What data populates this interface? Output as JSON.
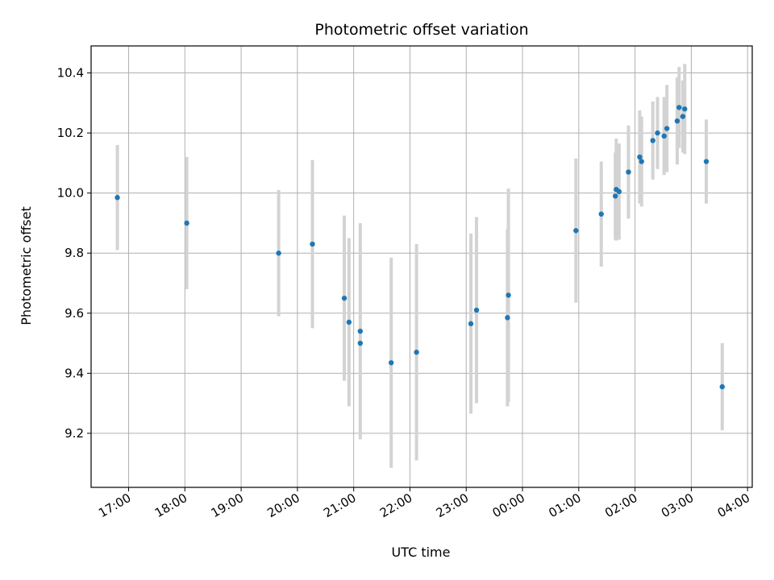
{
  "chart_data": {
    "type": "scatter",
    "title": "Photometric offset variation",
    "xlabel": "UTC time",
    "ylabel": "Photometric offset",
    "x_ticks": [
      "17:00",
      "18:00",
      "19:00",
      "20:00",
      "21:00",
      "22:00",
      "23:00",
      "00:00",
      "01:00",
      "02:00",
      "03:00",
      "04:00"
    ],
    "y_ticks": [
      "9.2",
      "9.4",
      "9.6",
      "9.8",
      "10.0",
      "10.2",
      "10.4"
    ],
    "ylim": [
      9.02,
      10.49
    ],
    "xlim": [
      "16:20",
      "04:05"
    ],
    "grid": true,
    "point_color": "#1f77b4",
    "errorbar_color": "#d3d3d3",
    "points": [
      {
        "x": "16:48",
        "y": 9.985,
        "err": 0.175
      },
      {
        "x": "18:02",
        "y": 9.9,
        "err": 0.22
      },
      {
        "x": "19:40",
        "y": 9.8,
        "err": 0.21
      },
      {
        "x": "20:16",
        "y": 9.83,
        "err": 0.28
      },
      {
        "x": "20:50",
        "y": 9.65,
        "err": 0.275
      },
      {
        "x": "20:55",
        "y": 9.57,
        "err": 0.28
      },
      {
        "x": "21:07",
        "y": 9.54,
        "err": 0.36
      },
      {
        "x": "21:07",
        "y": 9.5,
        "err": 0.0
      },
      {
        "x": "21:40",
        "y": 9.435,
        "err": 0.35
      },
      {
        "x": "22:07",
        "y": 9.47,
        "err": 0.36
      },
      {
        "x": "23:05",
        "y": 9.565,
        "err": 0.3
      },
      {
        "x": "23:11",
        "y": 9.61,
        "err": 0.31
      },
      {
        "x": "23:44",
        "y": 9.585,
        "err": 0.295
      },
      {
        "x": "23:45",
        "y": 9.66,
        "err": 0.355
      },
      {
        "x": "00:57",
        "y": 9.875,
        "err": 0.24
      },
      {
        "x": "01:24",
        "y": 9.93,
        "err": 0.175
      },
      {
        "x": "01:39",
        "y": 9.99,
        "err": 0.145
      },
      {
        "x": "01:40",
        "y": 10.012,
        "err": 0.17
      },
      {
        "x": "01:43",
        "y": 10.005,
        "err": 0.16
      },
      {
        "x": "01:53",
        "y": 10.07,
        "err": 0.155
      },
      {
        "x": "02:05",
        "y": 10.12,
        "err": 0.155
      },
      {
        "x": "02:07",
        "y": 10.105,
        "err": 0.15
      },
      {
        "x": "02:19",
        "y": 10.175,
        "err": 0.13
      },
      {
        "x": "02:24",
        "y": 10.2,
        "err": 0.12
      },
      {
        "x": "02:31",
        "y": 10.19,
        "err": 0.13
      },
      {
        "x": "02:34",
        "y": 10.215,
        "err": 0.145
      },
      {
        "x": "02:45",
        "y": 10.24,
        "err": 0.145
      },
      {
        "x": "02:47",
        "y": 10.285,
        "err": 0.135
      },
      {
        "x": "02:51",
        "y": 10.255,
        "err": 0.12
      },
      {
        "x": "02:53",
        "y": 10.28,
        "err": 0.15
      },
      {
        "x": "03:16",
        "y": 10.105,
        "err": 0.14
      },
      {
        "x": "03:33",
        "y": 9.355,
        "err": 0.145
      }
    ]
  }
}
